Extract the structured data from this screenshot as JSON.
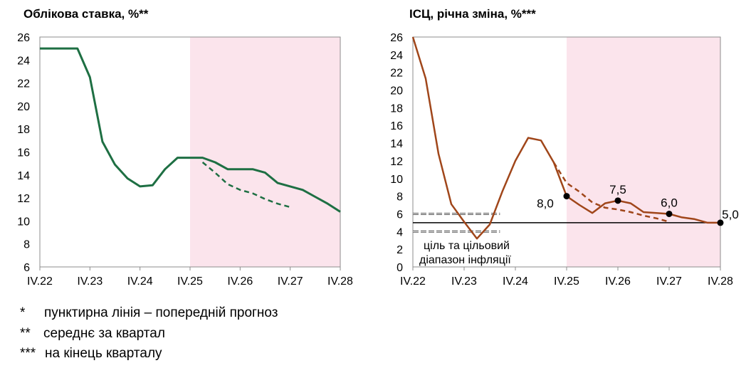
{
  "chart_data": [
    {
      "type": "line",
      "title": "Облікова ставка, %**",
      "x_tick_labels": [
        "IV.22",
        "IV.23",
        "IV.24",
        "IV.25",
        "IV.26",
        "IV.27",
        "IV.28"
      ],
      "ylim": [
        6,
        26
      ],
      "y_ticks": [
        6,
        8,
        10,
        12,
        14,
        16,
        18,
        20,
        22,
        24,
        26
      ],
      "forecast_shade_from": "IV.25",
      "series": [
        {
          "style": "solid",
          "color": "#1e6f43",
          "x": [
            0,
            0.5,
            0.75,
            1,
            1.25,
            1.5,
            1.75,
            2,
            2.25,
            2.5,
            2.75,
            3,
            3.25,
            3.5,
            3.75,
            4,
            4.25,
            4.5,
            4.75,
            5,
            5.25,
            5.5,
            5.75,
            6
          ],
          "y": [
            25,
            25,
            25,
            22.5,
            16.9,
            14.9,
            13.7,
            13,
            13.1,
            14.5,
            15.5,
            15.5,
            15.5,
            15.1,
            14.5,
            14.5,
            14.5,
            14.2,
            13.3,
            13,
            12.7,
            12.1,
            11.5,
            10.8
          ]
        },
        {
          "style": "dashed",
          "color": "#1e6f43",
          "x": [
            3.25,
            3.5,
            3.75,
            4,
            4.25,
            4.5,
            4.75,
            5
          ],
          "y": [
            15.1,
            14.2,
            13.2,
            12.7,
            12.4,
            11.9,
            11.5,
            11.2
          ]
        }
      ]
    },
    {
      "type": "line",
      "title": "ІСЦ, річна зміна, %***",
      "x_tick_labels": [
        "IV.22",
        "IV.23",
        "IV.24",
        "IV.25",
        "IV.26",
        "IV.27",
        "IV.28"
      ],
      "ylim": [
        0,
        26
      ],
      "y_ticks": [
        0,
        2,
        4,
        6,
        8,
        10,
        12,
        14,
        16,
        18,
        20,
        22,
        24,
        26
      ],
      "forecast_shade_from": "IV.25",
      "target_line": 5,
      "target_range": [
        4,
        6
      ],
      "target_label": [
        "ціль та цільовий",
        "діапазон інфляції"
      ],
      "series": [
        {
          "style": "solid",
          "color": "#a0461a",
          "x": [
            0,
            0.25,
            0.5,
            0.75,
            1,
            1.25,
            1.5,
            1.75,
            2,
            2.25,
            2.5,
            2.75,
            3,
            3.25,
            3.5,
            3.75,
            4,
            4.25,
            4.5,
            4.75,
            5,
            5.25,
            5.5,
            5.75,
            6
          ],
          "y": [
            26,
            21.3,
            12.8,
            7.1,
            5.1,
            3.2,
            4.8,
            8.6,
            12,
            14.6,
            14.3,
            11.8,
            8,
            7,
            6.1,
            7.2,
            7.5,
            7.2,
            6.2,
            6.1,
            6,
            5.6,
            5.4,
            5,
            5
          ]
        },
        {
          "style": "dashed",
          "color": "#a0461a",
          "x": [
            2.75,
            3,
            3.25,
            3.5,
            3.75,
            4,
            4.25,
            4.5,
            4.75,
            5
          ],
          "y": [
            11.8,
            9.5,
            8.5,
            7.3,
            6.7,
            6.5,
            6.2,
            5.8,
            5.5,
            5.1
          ]
        }
      ],
      "point_labels": [
        {
          "x": 3,
          "y": 8,
          "label": "8,0"
        },
        {
          "x": 4,
          "y": 7.5,
          "label": "7,5"
        },
        {
          "x": 5,
          "y": 6,
          "label": "6,0"
        },
        {
          "x": 6,
          "y": 5,
          "label": "5,0"
        }
      ]
    }
  ],
  "notes": [
    {
      "mark": "*",
      "text": "пунктирна лінія – попередній прогноз"
    },
    {
      "mark": "**",
      "text": "середнє за квартал"
    },
    {
      "mark": "***",
      "text": "на кінець кварталу"
    }
  ]
}
